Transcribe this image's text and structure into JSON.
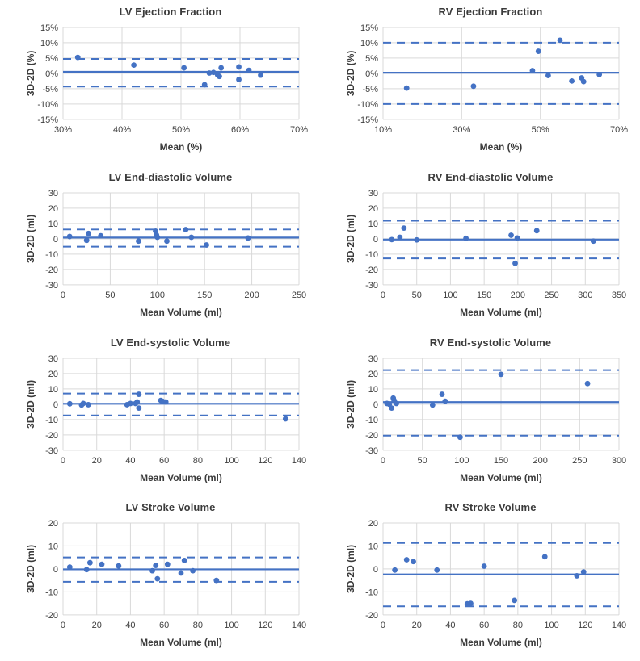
{
  "page": {
    "background": "#ffffff"
  },
  "colors": {
    "accent_blue": "#4472C4",
    "gridline": "#D9D9D9",
    "tick_text": "#404040",
    "label_text": "#3b3b3b"
  },
  "chart_data": [
    {
      "type": "scatter",
      "title": "LV Ejection Fraction",
      "xlabel": "Mean (%)",
      "ylabel": "3D-2D (%)",
      "xlim": [
        30,
        70
      ],
      "xticks": [
        30,
        40,
        50,
        60,
        70
      ],
      "ylim": [
        -15,
        15
      ],
      "yticks": [
        15,
        10,
        5,
        0,
        -5,
        -10,
        -15
      ],
      "tick_format": "percent",
      "bias": 0.5,
      "upper_loa": 4.7,
      "lower_loa": -4.3,
      "points": [
        [
          32.5,
          5.2
        ],
        [
          42,
          2.7
        ],
        [
          50.5,
          1.8
        ],
        [
          54,
          -3.7
        ],
        [
          54.8,
          0.1
        ],
        [
          55.5,
          0.3
        ],
        [
          56.2,
          -0.5
        ],
        [
          56.5,
          -1.0
        ],
        [
          56.8,
          1.8
        ],
        [
          59.8,
          2.1
        ],
        [
          59.8,
          -2.0
        ],
        [
          61.5,
          1.0
        ],
        [
          63.5,
          -0.6
        ]
      ]
    },
    {
      "type": "scatter",
      "title": "RV Ejection Fraction",
      "xlabel": "Mean (%)",
      "ylabel": "3D-2D (%)",
      "xlim": [
        10,
        70
      ],
      "xticks": [
        10,
        30,
        50,
        70
      ],
      "ylim": [
        -15,
        15
      ],
      "yticks": [
        15,
        10,
        5,
        0,
        -5,
        -10,
        -15
      ],
      "tick_format": "percent",
      "bias": 0.2,
      "upper_loa": 10.0,
      "lower_loa": -10.0,
      "points": [
        [
          16,
          -4.8
        ],
        [
          33,
          -4.2
        ],
        [
          48,
          0.9
        ],
        [
          49.5,
          7.2
        ],
        [
          52,
          -0.7
        ],
        [
          55,
          10.8
        ],
        [
          58,
          -2.5
        ],
        [
          60.5,
          -1.5
        ],
        [
          61,
          -2.7
        ],
        [
          65,
          -0.4
        ]
      ]
    },
    {
      "type": "scatter",
      "title": "LV End-diastolic Volume",
      "xlabel": "Mean Volume (ml)",
      "ylabel": "3D-2D (ml)",
      "xlim": [
        0,
        250
      ],
      "xticks": [
        0,
        50,
        100,
        150,
        200,
        250
      ],
      "ylim": [
        -30,
        30
      ],
      "yticks": [
        30,
        20,
        10,
        0,
        -10,
        -20,
        -30
      ],
      "tick_format": "number",
      "bias": 0.8,
      "upper_loa": 6.1,
      "lower_loa": -5.1,
      "points": [
        [
          7,
          1.5
        ],
        [
          25,
          -1.0
        ],
        [
          27,
          3.5
        ],
        [
          40,
          2.0
        ],
        [
          80,
          -1.5
        ],
        [
          98,
          5.0
        ],
        [
          99,
          2.5
        ],
        [
          100,
          1.0
        ],
        [
          110,
          -1.5
        ],
        [
          130,
          6.0
        ],
        [
          136,
          1.0
        ],
        [
          152,
          -4.0
        ],
        [
          196,
          0.5
        ]
      ]
    },
    {
      "type": "scatter",
      "title": "RV End-diastolic Volume",
      "xlabel": "Mean Volume (ml)",
      "ylabel": "3D-2D (ml)",
      "xlim": [
        0,
        350
      ],
      "xticks": [
        0,
        50,
        100,
        150,
        200,
        250,
        300,
        350
      ],
      "ylim": [
        -30,
        30
      ],
      "yticks": [
        30,
        20,
        10,
        0,
        -10,
        -20,
        -30
      ],
      "tick_format": "number",
      "bias": -0.5,
      "upper_loa": 11.8,
      "lower_loa": -12.8,
      "points": [
        [
          13,
          -0.5
        ],
        [
          25,
          1.0
        ],
        [
          31,
          7.0
        ],
        [
          50,
          -0.7
        ],
        [
          123,
          0.3
        ],
        [
          190,
          2.3
        ],
        [
          196,
          -16.0
        ],
        [
          199,
          0.5
        ],
        [
          228,
          5.3
        ],
        [
          312,
          -1.5
        ]
      ]
    },
    {
      "type": "scatter",
      "title": "LV End-systolic Volume",
      "xlabel": "Mean Volume (ml)",
      "ylabel": "3D-2D (ml)",
      "xlim": [
        0,
        140
      ],
      "xticks": [
        0,
        20,
        40,
        60,
        80,
        100,
        120,
        140
      ],
      "ylim": [
        -30,
        30
      ],
      "yticks": [
        30,
        20,
        10,
        0,
        -10,
        -20,
        -30
      ],
      "tick_format": "number",
      "bias": 0.3,
      "upper_loa": 7.0,
      "lower_loa": -7.3,
      "points": [
        [
          4,
          0.3
        ],
        [
          11,
          -0.5
        ],
        [
          12,
          0.5
        ],
        [
          15,
          -0.3
        ],
        [
          38,
          -0.3
        ],
        [
          40,
          0.5
        ],
        [
          43,
          0.5
        ],
        [
          44,
          1.5
        ],
        [
          45,
          6.5
        ],
        [
          45,
          -2.5
        ],
        [
          58,
          2.5
        ],
        [
          59,
          2.0
        ],
        [
          61,
          1.5
        ],
        [
          132,
          -9.5
        ]
      ]
    },
    {
      "type": "scatter",
      "title": "RV End-systolic Volume",
      "xlabel": "Mean Volume (ml)",
      "ylabel": "3D-2D (ml)",
      "xlim": [
        0,
        300
      ],
      "xticks": [
        0,
        50,
        100,
        150,
        200,
        250,
        300
      ],
      "ylim": [
        -30,
        30
      ],
      "yticks": [
        30,
        20,
        10,
        0,
        -10,
        -20,
        -30
      ],
      "tick_format": "number",
      "bias": 1.4,
      "upper_loa": 22.3,
      "lower_loa": -20.5,
      "points": [
        [
          5,
          0.5
        ],
        [
          8,
          0.0
        ],
        [
          11,
          -2.5
        ],
        [
          13,
          4.0
        ],
        [
          14,
          2.5
        ],
        [
          17,
          0.5
        ],
        [
          63,
          -0.5
        ],
        [
          75,
          6.5
        ],
        [
          79,
          2.0
        ],
        [
          98,
          -21.5
        ],
        [
          150,
          19.5
        ],
        [
          260,
          13.5
        ]
      ]
    },
    {
      "type": "scatter",
      "title": "LV Stroke Volume",
      "xlabel": "Mean Volume (ml)",
      "ylabel": "3D-2D (ml)",
      "xlim": [
        0,
        140
      ],
      "xticks": [
        0,
        20,
        40,
        60,
        80,
        100,
        120,
        140
      ],
      "ylim": [
        -20,
        20
      ],
      "yticks": [
        20,
        10,
        0,
        -10,
        -20
      ],
      "tick_format": "number",
      "bias": -0.2,
      "upper_loa": 5.0,
      "lower_loa": -5.6,
      "points": [
        [
          4,
          0.8
        ],
        [
          14,
          -0.3
        ],
        [
          16,
          2.7
        ],
        [
          23,
          2.0
        ],
        [
          33,
          1.3
        ],
        [
          53,
          -0.8
        ],
        [
          55,
          1.5
        ],
        [
          56,
          -4.3
        ],
        [
          62,
          2.0
        ],
        [
          70,
          -1.8
        ],
        [
          72,
          3.7
        ],
        [
          77,
          -0.8
        ],
        [
          91,
          -5.0
        ]
      ]
    },
    {
      "type": "scatter",
      "title": "RV Stroke Volume",
      "xlabel": "Mean Volume (ml)",
      "ylabel": "3D-2D (ml)",
      "xlim": [
        0,
        140
      ],
      "xticks": [
        0,
        20,
        40,
        60,
        80,
        100,
        120,
        140
      ],
      "ylim": [
        -20,
        20
      ],
      "yticks": [
        20,
        10,
        0,
        -10,
        -20
      ],
      "tick_format": "number",
      "bias": -2.4,
      "upper_loa": 11.3,
      "lower_loa": -16.3,
      "points": [
        [
          7,
          -0.5
        ],
        [
          14,
          4.0
        ],
        [
          18,
          3.2
        ],
        [
          32,
          -0.5
        ],
        [
          50,
          -15.2
        ],
        [
          52,
          -15.0
        ],
        [
          60,
          1.2
        ],
        [
          78,
          -13.7
        ],
        [
          96,
          5.3
        ],
        [
          115,
          -3.0
        ],
        [
          119,
          -1.3
        ]
      ]
    }
  ]
}
